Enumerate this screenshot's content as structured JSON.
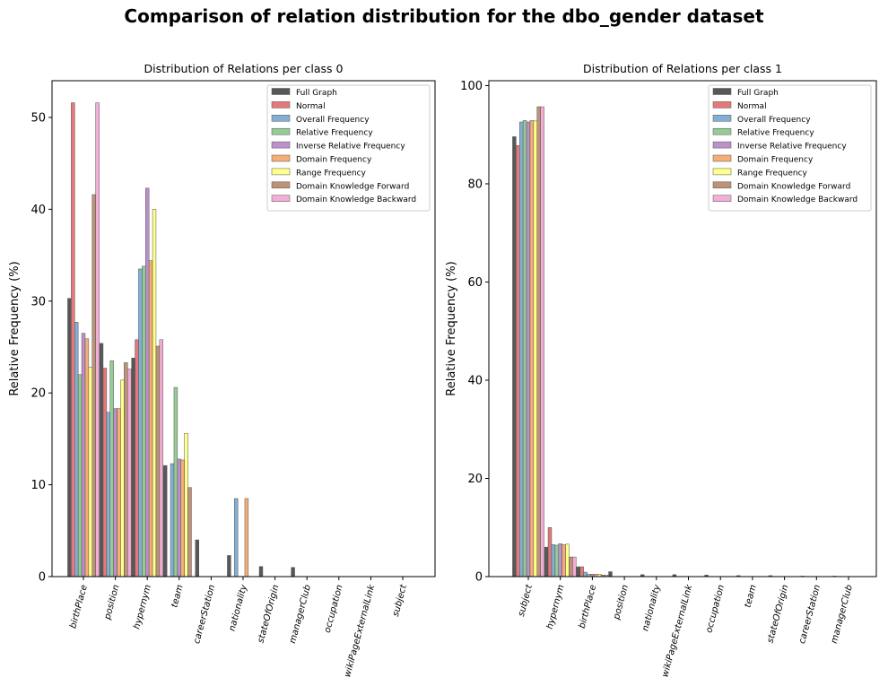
{
  "figure": {
    "title": "Comparison of relation distribution for the dbo_gender dataset"
  },
  "legend_labels": [
    "Full Graph",
    "Normal",
    "Overall Frequency",
    "Relative Frequency",
    "Inverse Relative Frequency",
    "Domain Frequency",
    "Range Frequency",
    "Domain Knowledge Forward",
    "Domain Knowledge Backward"
  ],
  "series_colors": [
    "#3a3a3a",
    "#e06060",
    "#6fa0cc",
    "#82c282",
    "#b07cbf",
    "#f3a05a",
    "#ffff77",
    "#b08060",
    "#f0a0cc"
  ],
  "chart_data": [
    {
      "type": "bar",
      "title": "Distribution of Relations per class 0",
      "xlabel": "",
      "ylabel": "Relative Frequency (%)",
      "ylim": [
        0,
        54
      ],
      "yticks": [
        0,
        10,
        20,
        30,
        40,
        50
      ],
      "legend_position": "top-right",
      "grid": false,
      "categories": [
        "birthPlace",
        "position",
        "hypernym",
        "team",
        "careerStation",
        "nationality",
        "stateOfOrigin",
        "managerClub",
        "occupation",
        "wikiPageExternalLink",
        "subject"
      ],
      "series": [
        {
          "name": "Full Graph",
          "values": [
            30.3,
            25.4,
            23.8,
            12.1,
            4.0,
            2.3,
            1.1,
            1.0,
            0,
            0,
            0
          ]
        },
        {
          "name": "Normal",
          "values": [
            51.6,
            22.7,
            25.8,
            0,
            0,
            0,
            0,
            0,
            0,
            0,
            0
          ]
        },
        {
          "name": "Overall Frequency",
          "values": [
            27.7,
            17.9,
            33.5,
            12.3,
            0,
            8.5,
            0,
            0,
            0,
            0,
            0
          ]
        },
        {
          "name": "Relative Frequency",
          "values": [
            22.0,
            23.5,
            33.8,
            20.6,
            0,
            0,
            0,
            0,
            0,
            0,
            0
          ]
        },
        {
          "name": "Inverse Relative Frequency",
          "values": [
            26.5,
            18.3,
            42.3,
            12.8,
            0,
            0,
            0,
            0,
            0,
            0,
            0
          ]
        },
        {
          "name": "Domain Frequency",
          "values": [
            25.9,
            18.3,
            34.4,
            12.7,
            0,
            8.5,
            0,
            0,
            0,
            0,
            0
          ]
        },
        {
          "name": "Range Frequency",
          "values": [
            22.8,
            21.4,
            40.0,
            15.6,
            0,
            0,
            0,
            0,
            0,
            0,
            0
          ]
        },
        {
          "name": "Domain Knowledge Forward",
          "values": [
            41.6,
            23.3,
            25.1,
            9.7,
            0,
            0,
            0,
            0,
            0,
            0,
            0
          ]
        },
        {
          "name": "Domain Knowledge Backward",
          "values": [
            51.6,
            22.6,
            25.8,
            0,
            0,
            0,
            0,
            0,
            0,
            0,
            0
          ]
        }
      ]
    },
    {
      "type": "bar",
      "title": "Distribution of Relations per class 1",
      "xlabel": "",
      "ylabel": "Relative Frequency (%)",
      "ylim": [
        0,
        101
      ],
      "yticks": [
        0,
        20,
        40,
        60,
        80,
        100
      ],
      "legend_position": "top-right",
      "grid": false,
      "categories": [
        "subject",
        "hypernym",
        "birthPlace",
        "position",
        "nationality",
        "wikiPageExternalLink",
        "occupation",
        "team",
        "stateOfOrigin",
        "careerStation",
        "managerClub"
      ],
      "series": [
        {
          "name": "Full Graph",
          "values": [
            89.6,
            6.0,
            2.0,
            1.0,
            0.4,
            0.4,
            0.3,
            0.2,
            0.2,
            0.1,
            0.1
          ]
        },
        {
          "name": "Normal",
          "values": [
            87.8,
            10.0,
            2.0,
            0,
            0,
            0,
            0,
            0,
            0,
            0,
            0
          ]
        },
        {
          "name": "Overall Frequency",
          "values": [
            92.6,
            6.5,
            0.9,
            0,
            0,
            0,
            0,
            0,
            0,
            0,
            0
          ]
        },
        {
          "name": "Relative Frequency",
          "values": [
            92.9,
            6.4,
            0.5,
            0,
            0,
            0,
            0,
            0,
            0,
            0,
            0
          ]
        },
        {
          "name": "Inverse Relative Frequency",
          "values": [
            92.6,
            6.7,
            0.5,
            0,
            0,
            0,
            0,
            0,
            0,
            0,
            0
          ]
        },
        {
          "name": "Domain Frequency",
          "values": [
            92.9,
            6.5,
            0.5,
            0,
            0,
            0,
            0,
            0,
            0,
            0,
            0
          ]
        },
        {
          "name": "Range Frequency",
          "values": [
            92.8,
            6.6,
            0.5,
            0,
            0,
            0,
            0,
            0,
            0,
            0,
            0
          ]
        },
        {
          "name": "Domain Knowledge Forward",
          "values": [
            95.7,
            4.0,
            0.3,
            0,
            0,
            0,
            0,
            0,
            0,
            0,
            0
          ]
        },
        {
          "name": "Domain Knowledge Backward",
          "values": [
            95.7,
            4.0,
            0.3,
            0,
            0,
            0,
            0,
            0,
            0,
            0,
            0
          ]
        }
      ]
    }
  ]
}
